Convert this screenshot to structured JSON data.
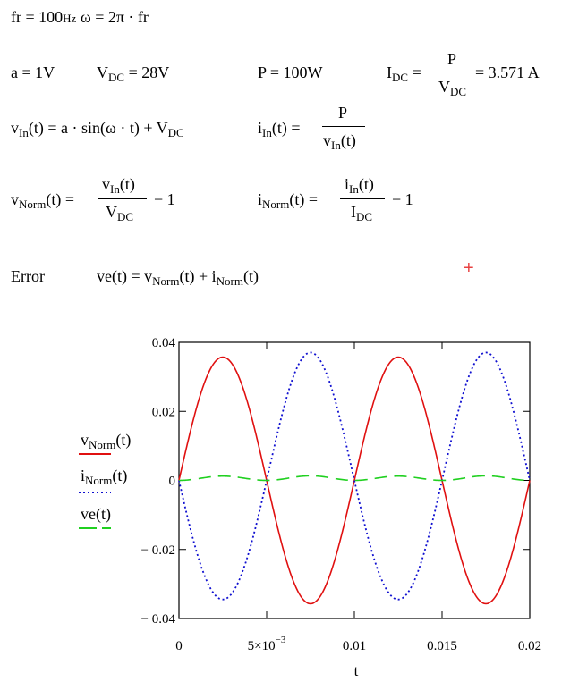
{
  "equations": {
    "fr": {
      "var": "fr",
      "eq": "=",
      "value": "100",
      "unit": "Hz"
    },
    "omega": {
      "var": "ω",
      "eq": "=",
      "expr": "2π · fr"
    },
    "a": {
      "var": "a",
      "eq": "=",
      "value": "1V"
    },
    "vdc": {
      "var": "V",
      "sub": "DC",
      "eq": "=",
      "value": "28V"
    },
    "p": {
      "var": "P",
      "eq": "=",
      "value": "100W"
    },
    "idc": {
      "var": "I",
      "sub": "DC",
      "eq": "=",
      "num": "P",
      "den_var": "V",
      "den_sub": "DC",
      "result": "= 3.571 A"
    },
    "vin": {
      "lhs_var": "v",
      "lhs_sub": "In",
      "lhs_arg": "(t)",
      "eq": "=",
      "rhs_a": "a · sin(ω · t) + V",
      "rhs_sub": "DC"
    },
    "iin": {
      "lhs_var": "i",
      "lhs_sub": "In",
      "lhs_arg": "(t)",
      "eq": "=",
      "num": "P",
      "den_var": "v",
      "den_sub": "In",
      "den_arg": "(t)"
    },
    "vnorm": {
      "lhs_var": "v",
      "lhs_sub": "Norm",
      "lhs_arg": "(t)",
      "eq": "=",
      "num_var": "v",
      "num_sub": "In",
      "num_arg": "(t)",
      "den_var": "V",
      "den_sub": "DC",
      "tail": "− 1"
    },
    "inorm": {
      "lhs_var": "i",
      "lhs_sub": "Norm",
      "lhs_arg": "(t)",
      "eq": "=",
      "num_var": "i",
      "num_sub": "In",
      "num_arg": "(t)",
      "den_var": "I",
      "den_sub": "DC",
      "tail": "− 1"
    },
    "error": {
      "label": "Error",
      "lhs": "ve(t)",
      "eq": "=",
      "t1_var": "v",
      "t1_sub": "Norm",
      "t1_arg": "(t) + i",
      "t2_sub": "Norm",
      "t2_arg": "(t)"
    },
    "marker": "+"
  },
  "chart_data": {
    "type": "line",
    "xlabel": "t",
    "xlim": [
      0,
      0.02
    ],
    "ylim": [
      -0.04,
      0.04
    ],
    "x_ticks": [
      {
        "value": 0,
        "label": "0"
      },
      {
        "value": 0.005,
        "label": "5×10",
        "exp": "−3"
      },
      {
        "value": 0.01,
        "label": "0.01"
      },
      {
        "value": 0.015,
        "label": "0.015"
      },
      {
        "value": 0.02,
        "label": "0.02"
      }
    ],
    "y_ticks": [
      {
        "value": 0.04,
        "label": "0.04"
      },
      {
        "value": 0.02,
        "label": "0.02"
      },
      {
        "value": 0,
        "label": "0"
      },
      {
        "value": -0.02,
        "label": "− 0.02"
      },
      {
        "value": -0.04,
        "label": "− 0.04"
      }
    ],
    "params": {
      "fr": 100,
      "a": 1,
      "vdc": 28
    },
    "series": [
      {
        "key": "vnorm",
        "legend_var": "v",
        "legend_sub": "Norm",
        "legend_arg": "(t)",
        "color": "#e01010",
        "style": "solid"
      },
      {
        "key": "inorm",
        "legend_var": "i",
        "legend_sub": "Norm",
        "legend_arg": "(t)",
        "color": "#1010d0",
        "style": "dotted"
      },
      {
        "key": "ve",
        "legend_var": "ve(t)",
        "legend_sub": "",
        "legend_arg": "",
        "color": "#20d020",
        "style": "dashed"
      }
    ]
  }
}
